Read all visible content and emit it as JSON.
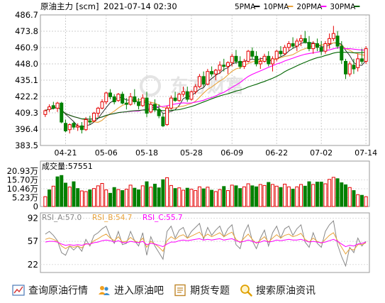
{
  "header": {
    "name": "原油主力",
    "code": "[scm]",
    "datetime": "2021-07-14 02:30",
    "ma_legend": [
      {
        "label": "5PMA",
        "color": "#000000"
      },
      {
        "label": "10PMA",
        "color": "#e8a23a"
      },
      {
        "label": "20PMA",
        "color": "#ff00ff"
      },
      {
        "label": "30PMA",
        "color": "#006400"
      }
    ]
  },
  "colors": {
    "up": "#e60000",
    "down": "#008000"
  },
  "chart_data": [
    {
      "type": "candlestick",
      "y_ticks": [
        "486.7",
        "473.8",
        "460.9",
        "448.0",
        "435.1",
        "422.2",
        "409.3",
        "396.4",
        "383.5"
      ],
      "ylim": [
        383.5,
        486.7
      ],
      "x_ticks": [
        {
          "label": "04-21",
          "index": 5
        },
        {
          "label": "05-06",
          "index": 15
        },
        {
          "label": "05-18",
          "index": 25
        },
        {
          "label": "05-28",
          "index": 36
        },
        {
          "label": "06-09",
          "index": 46
        },
        {
          "label": "06-22",
          "index": 57
        },
        {
          "label": "07-02",
          "index": 68
        },
        {
          "label": "07-14",
          "index": 79
        }
      ],
      "watermark": "东方财富",
      "ohlc": [
        [
          408,
          412,
          406,
          411
        ],
        [
          412,
          416,
          410,
          414
        ],
        [
          415,
          418,
          412,
          413
        ],
        [
          413,
          418,
          410,
          417
        ],
        [
          417,
          418,
          401,
          402
        ],
        [
          401,
          404,
          394,
          395
        ],
        [
          396,
          401,
          393,
          400
        ],
        [
          401,
          402,
          396,
          398
        ],
        [
          398,
          401,
          395,
          399
        ],
        [
          399,
          402,
          393,
          396
        ],
        [
          396,
          406,
          395,
          404
        ],
        [
          403,
          407,
          400,
          402
        ],
        [
          403,
          410,
          402,
          409
        ],
        [
          409,
          414,
          406,
          413
        ],
        [
          413,
          420,
          412,
          418
        ],
        [
          418,
          426,
          416,
          425
        ],
        [
          425,
          428,
          420,
          422
        ],
        [
          422,
          424,
          416,
          418
        ],
        [
          419,
          425,
          418,
          424
        ],
        [
          424,
          426,
          416,
          417
        ],
        [
          417,
          421,
          412,
          416
        ],
        [
          416,
          425,
          415,
          422
        ],
        [
          422,
          428,
          416,
          418
        ],
        [
          418,
          421,
          412,
          415
        ],
        [
          415,
          424,
          414,
          421
        ],
        [
          421,
          426,
          406,
          409
        ],
        [
          410,
          418,
          409,
          416
        ],
        [
          416,
          420,
          410,
          412
        ],
        [
          412,
          416,
          405,
          407
        ],
        [
          406,
          409,
          398,
          399
        ],
        [
          400,
          415,
          399,
          413
        ],
        [
          413,
          423,
          412,
          421
        ],
        [
          421,
          426,
          418,
          419
        ],
        [
          419,
          425,
          418,
          424
        ],
        [
          424,
          430,
          422,
          426
        ],
        [
          426,
          430,
          418,
          420
        ],
        [
          420,
          427,
          419,
          426
        ],
        [
          426,
          432,
          424,
          430
        ],
        [
          430,
          440,
          429,
          438
        ],
        [
          438,
          442,
          430,
          432
        ],
        [
          432,
          444,
          431,
          442
        ],
        [
          442,
          446,
          438,
          440
        ],
        [
          440,
          444,
          435,
          443
        ],
        [
          443,
          450,
          440,
          447
        ],
        [
          447,
          452,
          442,
          446
        ],
        [
          446,
          450,
          440,
          449
        ],
        [
          449,
          456,
          446,
          454
        ],
        [
          454,
          459,
          448,
          450
        ],
        [
          450,
          454,
          444,
          446
        ],
        [
          446,
          452,
          444,
          450
        ],
        [
          450,
          459,
          449,
          458
        ],
        [
          458,
          461,
          452,
          454
        ],
        [
          454,
          458,
          446,
          448
        ],
        [
          448,
          453,
          444,
          450
        ],
        [
          450,
          456,
          449,
          454
        ],
        [
          454,
          458,
          446,
          448
        ],
        [
          448,
          454,
          442,
          452
        ],
        [
          452,
          459,
          450,
          458
        ],
        [
          458,
          462,
          454,
          456
        ],
        [
          456,
          463,
          455,
          461
        ],
        [
          461,
          466,
          458,
          464
        ],
        [
          464,
          469,
          460,
          462
        ],
        [
          462,
          468,
          458,
          466
        ],
        [
          466,
          471,
          462,
          468
        ],
        [
          468,
          474,
          464,
          465
        ],
        [
          465,
          470,
          458,
          460
        ],
        [
          460,
          466,
          456,
          464
        ],
        [
          464,
          468,
          458,
          461
        ],
        [
          461,
          466,
          455,
          458
        ],
        [
          458,
          466,
          456,
          464
        ],
        [
          464,
          472,
          460,
          468
        ],
        [
          468,
          478,
          466,
          472
        ],
        [
          470,
          474,
          460,
          462
        ],
        [
          462,
          466,
          448,
          451
        ],
        [
          450,
          452,
          436,
          440
        ],
        [
          440,
          450,
          438,
          448
        ],
        [
          447,
          452,
          440,
          444
        ],
        [
          445,
          456,
          442,
          452
        ],
        [
          452,
          460,
          448,
          450
        ],
        [
          450,
          462,
          448,
          460
        ]
      ]
    },
    {
      "type": "bar",
      "label": "成交量",
      "value": "57551",
      "y_ticks": [
        "20.93万",
        "15.70万",
        "10.46万",
        "5.23万",
        "0"
      ],
      "ylim": [
        0,
        20.93
      ],
      "unit": "万",
      "values": [
        5.8,
        9.8,
        12.0,
        17.5,
        18.3,
        13.8,
        11.5,
        14.6,
        10.6,
        9.2,
        8.8,
        9.8,
        10.6,
        12.2,
        13.6,
        9.8,
        7.8,
        11.2,
        10.0,
        9.4,
        10.2,
        12.6,
        10.8,
        9.8,
        12.2,
        14.6,
        11.4,
        13.2,
        11.0,
        15.8,
        17.0,
        12.4,
        10.6,
        11.0,
        9.6,
        10.8,
        10.2,
        9.4,
        11.6,
        10.4,
        11.4,
        9.6,
        8.8,
        10.0,
        11.8,
        9.4,
        12.6,
        12.2,
        10.6,
        11.6,
        13.4,
        12.2,
        11.6,
        13.0,
        12.4,
        14.2,
        13.0,
        12.0,
        11.2,
        13.2,
        11.6,
        10.2,
        11.6,
        13.0,
        12.0,
        14.6,
        13.0,
        14.4,
        14.4,
        13.4,
        16.0,
        17.2,
        16.4,
        14.0,
        12.8,
        11.2,
        9.4,
        7.0,
        6.6,
        5.8
      ],
      "directions": [
        "up",
        "down",
        "up",
        "down",
        "down",
        "down",
        "up",
        "down",
        "down",
        "up",
        "up",
        "down",
        "up",
        "up",
        "up",
        "up",
        "down",
        "down",
        "up",
        "down",
        "up",
        "up",
        "down",
        "down",
        "up",
        "down",
        "up",
        "down",
        "down",
        "down",
        "up",
        "up",
        "down",
        "up",
        "up",
        "down",
        "up",
        "up",
        "up",
        "down",
        "up",
        "down",
        "up",
        "up",
        "down",
        "up",
        "up",
        "down",
        "down",
        "up",
        "up",
        "down",
        "down",
        "up",
        "up",
        "down",
        "up",
        "up",
        "down",
        "up",
        "up",
        "down",
        "up",
        "up",
        "down",
        "down",
        "up",
        "down",
        "down",
        "up",
        "up",
        "up",
        "down",
        "down",
        "down",
        "up",
        "down",
        "up",
        "down",
        "up"
      ]
    },
    {
      "type": "line",
      "y_ticks": [
        "92",
        "57",
        "22"
      ],
      "ylim": [
        10,
        100
      ],
      "legend": [
        {
          "label": "RSI_A:57.0",
          "color": "#888888"
        },
        {
          "label": "RSI_B:54.7",
          "color": "#e8a23a"
        },
        {
          "label": "RSI_C:55.7",
          "color": "#ff00ff"
        }
      ],
      "series": [
        {
          "name": "RSI_A",
          "color": "#888888",
          "values": [
            68,
            72,
            66,
            58,
            40,
            36,
            50,
            44,
            50,
            42,
            60,
            50,
            66,
            70,
            76,
            80,
            64,
            54,
            72,
            52,
            54,
            72,
            58,
            50,
            70,
            36,
            64,
            50,
            40,
            30,
            72,
            80,
            62,
            74,
            78,
            62,
            72,
            78,
            84,
            60,
            78,
            66,
            74,
            80,
            64,
            76,
            82,
            52,
            46,
            70,
            82,
            58,
            46,
            62,
            74,
            50,
            70,
            80,
            62,
            76,
            80,
            66,
            76,
            82,
            56,
            48,
            70,
            54,
            48,
            72,
            82,
            88,
            52,
            34,
            20,
            48,
            40,
            62,
            50,
            57
          ]
        },
        {
          "name": "RSI_B",
          "color": "#e8a23a",
          "values": [
            60,
            62,
            60,
            57,
            50,
            46,
            50,
            48,
            50,
            47,
            54,
            52,
            58,
            61,
            65,
            68,
            62,
            58,
            64,
            56,
            57,
            63,
            58,
            55,
            62,
            48,
            57,
            53,
            48,
            42,
            58,
            64,
            60,
            65,
            67,
            62,
            65,
            68,
            71,
            63,
            68,
            64,
            67,
            70,
            64,
            68,
            71,
            60,
            55,
            62,
            68,
            60,
            54,
            59,
            64,
            56,
            62,
            67,
            62,
            66,
            68,
            64,
            66,
            69,
            60,
            56,
            62,
            57,
            54,
            60,
            66,
            70,
            58,
            48,
            38,
            46,
            44,
            52,
            52,
            54.7
          ]
        },
        {
          "name": "RSI_C",
          "color": "#ff00ff",
          "values": [
            56,
            57,
            57,
            56,
            53,
            51,
            52,
            51,
            52,
            51,
            53,
            53,
            55,
            56,
            58,
            59,
            58,
            56,
            58,
            55,
            55,
            57,
            56,
            55,
            57,
            52,
            54,
            53,
            51,
            49,
            53,
            56,
            56,
            58,
            59,
            58,
            59,
            60,
            61,
            59,
            60,
            59,
            60,
            61,
            59,
            60,
            61,
            58,
            56,
            57,
            59,
            57,
            55,
            56,
            58,
            56,
            57,
            59,
            58,
            59,
            60,
            59,
            59,
            60,
            58,
            56,
            57,
            56,
            55,
            56,
            58,
            60,
            57,
            53,
            49,
            51,
            50,
            53,
            54,
            55.7
          ]
        }
      ]
    }
  ],
  "footer": {
    "links": [
      {
        "label": "查询原油行情",
        "icon": "chart-icon"
      },
      {
        "label": "进入原油吧",
        "icon": "users-icon"
      },
      {
        "label": "期货专题",
        "icon": "document-icon"
      },
      {
        "label": "搜索原油资讯",
        "icon": "search-icon"
      }
    ]
  }
}
